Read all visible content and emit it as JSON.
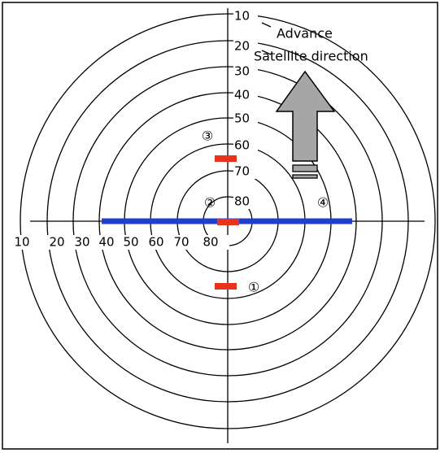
{
  "vertical_labels": [
    10,
    20,
    30,
    40,
    50,
    60,
    70,
    80
  ],
  "horizontal_labels": [
    10,
    20,
    30,
    40,
    50,
    60,
    70,
    80
  ],
  "markers": [
    "①",
    "②",
    "③",
    "④"
  ],
  "annotations": [
    "Advance",
    "Satellite direction"
  ]
}
